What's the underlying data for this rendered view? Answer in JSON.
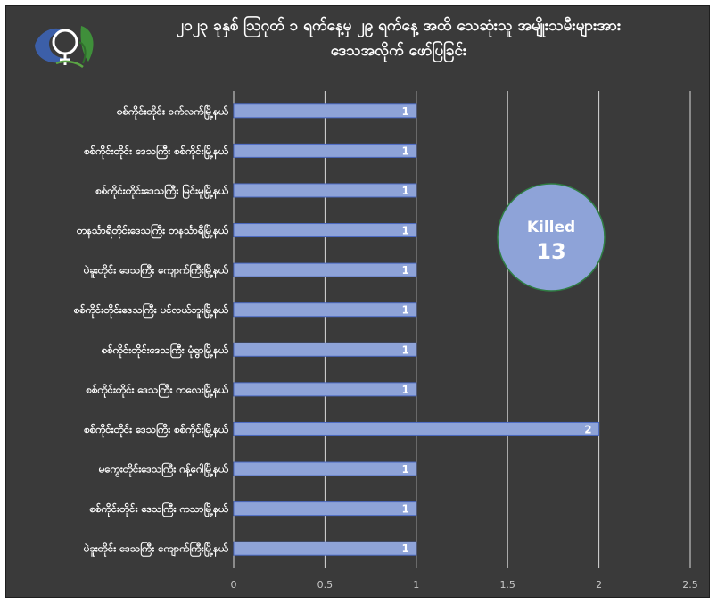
{
  "chart_data": {
    "type": "bar",
    "orientation": "horizontal",
    "title": "၂၀၂၃ ခုနှစ် ဩဂုတ် ၁ ရက်နေ့မှ ၂၉ ရက်နေ့ အထိ သေဆုံးသူ အမျိုးသမီးများအား ဒေသအလိုက် ဖော်ပြခြင်း",
    "title_lines": [
      "၂၀၂၃ ခုနှစ် ဩဂုတ် ၁ ရက်နေ့မှ ၂၉ ရက်နေ့ အထိ သေဆုံးသူ အမျိုးသမီးများအား",
      "ဒေသအလိုက် ဖော်ပြခြင်း"
    ],
    "categories": [
      "စစ်ကိုင်းတိုင်း ဝက်လက်မြို့နယ်",
      "စစ်ကိုင်းတိုင်း ဒေသကြီး စစ်ကိုင်းမြို့နယ်",
      "စစ်ကိုင်းတိုင်းဒေသကြီး မြင်းမူမြို့နယ်",
      "တနင်္သာရီတိုင်းဒေသကြီး တနင်္သာရီမြို့နယ်",
      "ပဲခူးတိုင်း ဒေသကြီး ကျောက်ကြီးမြို့နယ်",
      "စစ်ကိုင်းတိုင်းဒေသကြီး ပင်လယ်ဘူးမြို့နယ်",
      "စစ်ကိုင်းတိုင်းဒေသကြီး မုံရွာမြို့နယ်",
      "စစ်ကိုင်းတိုင်း ဒေသကြီး ကလေးမြို့နယ်",
      "စစ်ကိုင်းတိုင်း ဒေသကြီး စစ်ကိုင်းမြို့နယ်",
      "မကွေးတိုင်းဒေသကြီး ဂန့်ဂေါမြို့နယ်",
      "စစ်ကိုင်းတိုင်း ဒေသကြီး ကသာမြို့နယ်",
      "ပဲခူးတိုင်း ဒေသကြီး ကျောက်ကြီးမြို့နယ်"
    ],
    "values": [
      1,
      1,
      1,
      1,
      1,
      1,
      1,
      1,
      2,
      1,
      1,
      1
    ],
    "data_labels": [
      "1",
      "1",
      "1",
      "1",
      "1",
      "1",
      "1",
      "1",
      "2",
      "1",
      "1",
      "1"
    ],
    "xlim": [
      0,
      2.5
    ],
    "x_ticks": [
      0,
      0.5,
      1,
      1.5,
      2,
      2.5
    ],
    "x_tick_labels": [
      "0",
      "0.5",
      "1",
      "1.5",
      "2",
      "2.5"
    ],
    "xlabel": "",
    "ylabel": "",
    "grid": "vertical",
    "legend": "none",
    "annotation": {
      "label": "Killed",
      "value": "13"
    },
    "colors": {
      "background": "#3a3a3a",
      "bar_fill": "#8ea3d8",
      "bar_edge": "#4c6ac2",
      "gridline": "#d9d9d9",
      "annotation_fill": "#8ea3d8",
      "annotation_edge": "#2f7d43",
      "text": "#ffffff"
    }
  },
  "logo": {
    "icon": "women-organization-logo"
  }
}
